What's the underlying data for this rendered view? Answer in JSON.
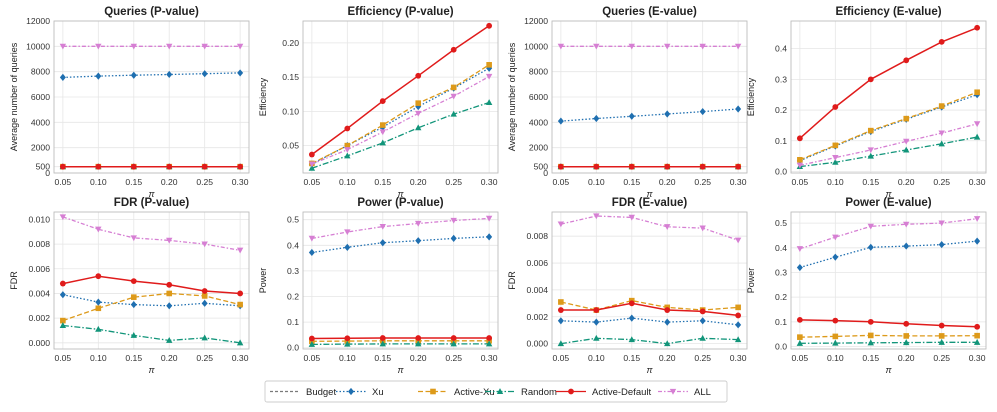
{
  "legend": [
    {
      "name": "Budget",
      "color": "#7a7a7a",
      "dash": "3,2",
      "marker": "none"
    },
    {
      "name": "Xu",
      "color": "#1f6fb0",
      "dash": "1.5,2",
      "marker": "diamond"
    },
    {
      "name": "Active-Xu",
      "color": "#dd9a1a",
      "dash": "5,2.5",
      "marker": "square"
    },
    {
      "name": "Random",
      "color": "#12957a",
      "dash": "6,2,1.5,2",
      "marker": "triangle"
    },
    {
      "name": "Active-Default",
      "color": "#e01b1b",
      "dash": "",
      "marker": "circle"
    },
    {
      "name": "ALL",
      "color": "#d67fd3",
      "dash": "4,2,1.5,2",
      "marker": "tridown"
    }
  ],
  "chart_data": [
    {
      "type": "line",
      "title": "Queries (P-value)",
      "xlabel": "π",
      "ylabel": "Average number of queries",
      "x": [
        0.05,
        0.1,
        0.15,
        0.2,
        0.25,
        0.3
      ],
      "xticks": [
        "0.05",
        "0.10",
        "0.15",
        "0.20",
        "0.25",
        "0.30"
      ],
      "ylim": [
        0,
        12000
      ],
      "yticks": [
        0,
        500,
        2000,
        4000,
        6000,
        8000,
        10000,
        12000
      ],
      "yticklabels": [
        "0",
        "500",
        "2000",
        "4000",
        "6000",
        "8000",
        "10000",
        "12000"
      ],
      "series": [
        {
          "name": "Budget",
          "values": [
            500,
            500,
            500,
            500,
            500,
            500
          ]
        },
        {
          "name": "Xu",
          "values": [
            7550,
            7650,
            7720,
            7780,
            7840,
            7900
          ]
        },
        {
          "name": "Active-Xu",
          "values": [
            500,
            500,
            500,
            500,
            500,
            500
          ]
        },
        {
          "name": "Random",
          "values": [
            500,
            500,
            500,
            500,
            500,
            500
          ]
        },
        {
          "name": "Active-Default",
          "values": [
            500,
            500,
            500,
            500,
            500,
            500
          ]
        },
        {
          "name": "ALL",
          "values": [
            10000,
            10000,
            10000,
            10000,
            10000,
            10000
          ]
        }
      ]
    },
    {
      "type": "line",
      "title": "Efficiency (P-value)",
      "xlabel": "π",
      "ylabel": "Efficiency",
      "x": [
        0.05,
        0.1,
        0.15,
        0.2,
        0.25,
        0.3
      ],
      "xticks": [
        "0.05",
        "0.10",
        "0.15",
        "0.20",
        "0.25",
        "0.30"
      ],
      "ylim": [
        0.01,
        0.232
      ],
      "yticks": [
        0.05,
        0.1,
        0.15,
        0.2
      ],
      "yticklabels": [
        "0.05",
        "0.10",
        "0.15",
        "0.20"
      ],
      "series": [
        {
          "name": "Xu",
          "values": [
            0.023,
            0.05,
            0.077,
            0.107,
            0.134,
            0.163
          ]
        },
        {
          "name": "Active-Xu",
          "values": [
            0.024,
            0.05,
            0.08,
            0.112,
            0.135,
            0.168
          ]
        },
        {
          "name": "Random",
          "values": [
            0.017,
            0.035,
            0.054,
            0.076,
            0.096,
            0.113
          ]
        },
        {
          "name": "Active-Default",
          "values": [
            0.037,
            0.075,
            0.115,
            0.152,
            0.19,
            0.225
          ]
        },
        {
          "name": "ALL",
          "values": [
            0.023,
            0.044,
            0.07,
            0.097,
            0.122,
            0.151
          ]
        }
      ]
    },
    {
      "type": "line",
      "title": "Queries (E-value)",
      "xlabel": "π",
      "ylabel": "Average number of queries",
      "x": [
        0.05,
        0.1,
        0.15,
        0.2,
        0.25,
        0.3
      ],
      "xticks": [
        "0.05",
        "0.10",
        "0.15",
        "0.20",
        "0.25",
        "0.30"
      ],
      "ylim": [
        0,
        12000
      ],
      "yticks": [
        0,
        500,
        2000,
        4000,
        6000,
        8000,
        10000,
        12000
      ],
      "yticklabels": [
        "0",
        "500",
        "2000",
        "4000",
        "6000",
        "8000",
        "10000",
        "12000"
      ],
      "series": [
        {
          "name": "Budget",
          "values": [
            500,
            500,
            500,
            500,
            500,
            500
          ]
        },
        {
          "name": "Xu",
          "values": [
            4100,
            4300,
            4480,
            4660,
            4850,
            5050
          ]
        },
        {
          "name": "Active-Xu",
          "values": [
            500,
            500,
            500,
            500,
            500,
            500
          ]
        },
        {
          "name": "Random",
          "values": [
            500,
            500,
            500,
            500,
            500,
            500
          ]
        },
        {
          "name": "Active-Default",
          "values": [
            500,
            500,
            500,
            500,
            500,
            500
          ]
        },
        {
          "name": "ALL",
          "values": [
            10000,
            10000,
            10000,
            10000,
            10000,
            10000
          ]
        }
      ]
    },
    {
      "type": "line",
      "title": "Efficiency (E-value)",
      "xlabel": "π",
      "ylabel": "Efficiency",
      "x": [
        0.05,
        0.1,
        0.15,
        0.2,
        0.25,
        0.3
      ],
      "xticks": [
        "0.05",
        "0.10",
        "0.15",
        "0.20",
        "0.25",
        "0.30"
      ],
      "ylim": [
        -0.005,
        0.49
      ],
      "yticks": [
        0,
        0.1,
        0.2,
        0.3,
        0.4
      ],
      "yticklabels": [
        "0.0",
        "0.1",
        "0.2",
        "0.3",
        "0.4"
      ],
      "series": [
        {
          "name": "Xu",
          "values": [
            0.035,
            0.083,
            0.13,
            0.17,
            0.21,
            0.25
          ]
        },
        {
          "name": "Active-Xu",
          "values": [
            0.038,
            0.085,
            0.133,
            0.172,
            0.213,
            0.258
          ]
        },
        {
          "name": "Random",
          "values": [
            0.016,
            0.03,
            0.05,
            0.07,
            0.09,
            0.112
          ]
        },
        {
          "name": "Active-Default",
          "values": [
            0.108,
            0.21,
            0.3,
            0.362,
            0.422,
            0.468
          ]
        },
        {
          "name": "ALL",
          "values": [
            0.02,
            0.045,
            0.07,
            0.098,
            0.125,
            0.155
          ]
        }
      ]
    },
    {
      "type": "line",
      "title": "FDR (P-value)",
      "xlabel": "π",
      "ylabel": "FDR",
      "x": [
        0.05,
        0.1,
        0.15,
        0.2,
        0.25,
        0.3
      ],
      "xticks": [
        "0.05",
        "0.10",
        "0.15",
        "0.20",
        "0.25",
        "0.30"
      ],
      "ylim": [
        -0.0005,
        0.0106
      ],
      "yticks": [
        0,
        0.002,
        0.004,
        0.006,
        0.008,
        0.01
      ],
      "yticklabels": [
        "0.000",
        "0.002",
        "0.004",
        "0.006",
        "0.008",
        "0.010"
      ],
      "series": [
        {
          "name": "Xu",
          "values": [
            0.0039,
            0.0033,
            0.0031,
            0.003,
            0.0032,
            0.003
          ]
        },
        {
          "name": "Active-Xu",
          "values": [
            0.0018,
            0.0028,
            0.0037,
            0.004,
            0.0038,
            0.0031
          ]
        },
        {
          "name": "Random",
          "values": [
            0.0014,
            0.0011,
            0.0006,
            0.0002,
            0.0004,
            0.0
          ]
        },
        {
          "name": "Active-Default",
          "values": [
            0.0048,
            0.0054,
            0.005,
            0.0047,
            0.0042,
            0.004
          ]
        },
        {
          "name": "ALL",
          "values": [
            0.0102,
            0.0092,
            0.0085,
            0.0083,
            0.008,
            0.0075
          ]
        }
      ]
    },
    {
      "type": "line",
      "title": "Power (P-value)",
      "xlabel": "π",
      "ylabel": "Power",
      "x": [
        0.05,
        0.1,
        0.15,
        0.2,
        0.25,
        0.3
      ],
      "xticks": [
        "0.05",
        "0.10",
        "0.15",
        "0.20",
        "0.25",
        "0.30"
      ],
      "ylim": [
        -0.005,
        0.53
      ],
      "yticks": [
        0,
        0.1,
        0.2,
        0.3,
        0.4,
        0.5
      ],
      "yticklabels": [
        "0.0",
        "0.1",
        "0.2",
        "0.3",
        "0.4",
        "0.5"
      ],
      "series": [
        {
          "name": "Xu",
          "values": [
            0.372,
            0.392,
            0.41,
            0.418,
            0.427,
            0.433
          ]
        },
        {
          "name": "Active-Xu",
          "values": [
            0.025,
            0.026,
            0.027,
            0.027,
            0.027,
            0.027
          ]
        },
        {
          "name": "Random",
          "values": [
            0.013,
            0.014,
            0.015,
            0.015,
            0.015,
            0.015
          ]
        },
        {
          "name": "Active-Default",
          "values": [
            0.036,
            0.037,
            0.038,
            0.038,
            0.038,
            0.038
          ]
        },
        {
          "name": "ALL",
          "values": [
            0.427,
            0.452,
            0.473,
            0.485,
            0.497,
            0.505
          ]
        }
      ]
    },
    {
      "type": "line",
      "title": "FDR (E-value)",
      "xlabel": "π",
      "ylabel": "FDR",
      "x": [
        0.05,
        0.1,
        0.15,
        0.2,
        0.25,
        0.3
      ],
      "xticks": [
        "0.05",
        "0.10",
        "0.15",
        "0.20",
        "0.25",
        "0.30"
      ],
      "ylim": [
        -0.0004,
        0.0098
      ],
      "yticks": [
        0,
        0.002,
        0.004,
        0.006,
        0.008
      ],
      "yticklabels": [
        "0.000",
        "0.002",
        "0.004",
        "0.006",
        "0.008"
      ],
      "series": [
        {
          "name": "Xu",
          "values": [
            0.0017,
            0.0016,
            0.0019,
            0.0016,
            0.0017,
            0.0014
          ]
        },
        {
          "name": "Active-Xu",
          "values": [
            0.0031,
            0.0025,
            0.0032,
            0.0027,
            0.0025,
            0.0027
          ]
        },
        {
          "name": "Random",
          "values": [
            0.0,
            0.0004,
            0.0003,
            0.0,
            0.0004,
            0.0003
          ]
        },
        {
          "name": "Active-Default",
          "values": [
            0.0025,
            0.0025,
            0.003,
            0.0025,
            0.0024,
            0.0021
          ]
        },
        {
          "name": "ALL",
          "values": [
            0.0089,
            0.0095,
            0.0094,
            0.0087,
            0.0086,
            0.0077
          ]
        }
      ]
    },
    {
      "type": "line",
      "title": "Power (E-value)",
      "xlabel": "π",
      "ylabel": "Power",
      "x": [
        0.05,
        0.1,
        0.15,
        0.2,
        0.25,
        0.3
      ],
      "xticks": [
        "0.05",
        "0.10",
        "0.15",
        "0.20",
        "0.25",
        "0.30"
      ],
      "ylim": [
        -0.01,
        0.545
      ],
      "yticks": [
        0,
        0.1,
        0.2,
        0.3,
        0.4,
        0.5
      ],
      "yticklabels": [
        "0.0",
        "0.1",
        "0.2",
        "0.3",
        "0.4",
        "0.5"
      ],
      "series": [
        {
          "name": "Xu",
          "values": [
            0.32,
            0.362,
            0.402,
            0.407,
            0.413,
            0.427
          ]
        },
        {
          "name": "Active-Xu",
          "values": [
            0.038,
            0.041,
            0.045,
            0.043,
            0.043,
            0.044
          ]
        },
        {
          "name": "Random",
          "values": [
            0.013,
            0.014,
            0.015,
            0.016,
            0.017,
            0.017
          ]
        },
        {
          "name": "Active-Default",
          "values": [
            0.108,
            0.105,
            0.1,
            0.092,
            0.085,
            0.08
          ]
        },
        {
          "name": "ALL",
          "values": [
            0.396,
            0.443,
            0.487,
            0.495,
            0.5,
            0.518
          ]
        }
      ]
    }
  ]
}
